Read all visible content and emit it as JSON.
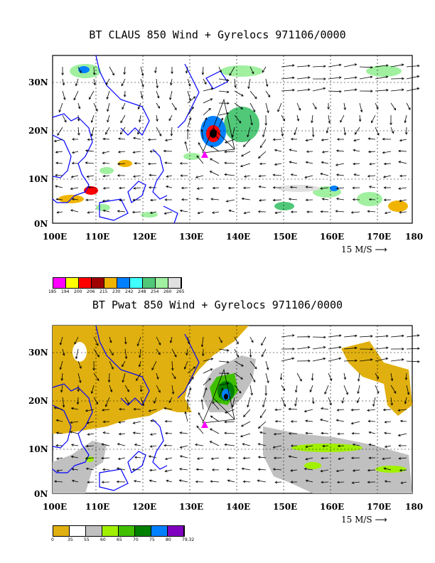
{
  "panel1": {
    "title": "BT CLAUS 850 Wind + Gyrelocs 971106/0000",
    "yticks": [
      "30N",
      "20N",
      "10N",
      "0N"
    ],
    "xticks": [
      "100E",
      "110E",
      "120E",
      "130E",
      "140E",
      "150E",
      "160E",
      "170E",
      "180"
    ],
    "scale_label": "15 M/S",
    "legend_colors": [
      "#ff00ff",
      "#ffff00",
      "#ff0000",
      "#a00000",
      "#f0b400",
      "#0080ff",
      "#40ffff",
      "#50c878",
      "#a0f0a0",
      "#e0e0e0"
    ],
    "legend_labels": [
      "185",
      "194",
      "200",
      "206",
      "215",
      "230",
      "242",
      "248",
      "254",
      "260",
      "265"
    ]
  },
  "panel2": {
    "title": "BT Pwat 850 Wind + Gyrelocs 971106/0000",
    "yticks": [
      "30N",
      "20N",
      "10N",
      "0N"
    ],
    "xticks": [
      "100E",
      "110E",
      "120E",
      "130E",
      "140E",
      "150E",
      "160E",
      "170E",
      "180"
    ],
    "scale_label": "15 M/S",
    "legend_colors": [
      "#e0b010",
      "#ffffff",
      "#c0c0c0",
      "#a0f000",
      "#40c000",
      "#008000",
      "#0080ff",
      "#8000c0"
    ],
    "legend_labels": [
      "0",
      "35",
      "55",
      "60",
      "65",
      "70",
      "75",
      "80",
      "79.32"
    ]
  },
  "colors": {
    "coast": "#0000ff",
    "gyre": "#ff00ff"
  }
}
